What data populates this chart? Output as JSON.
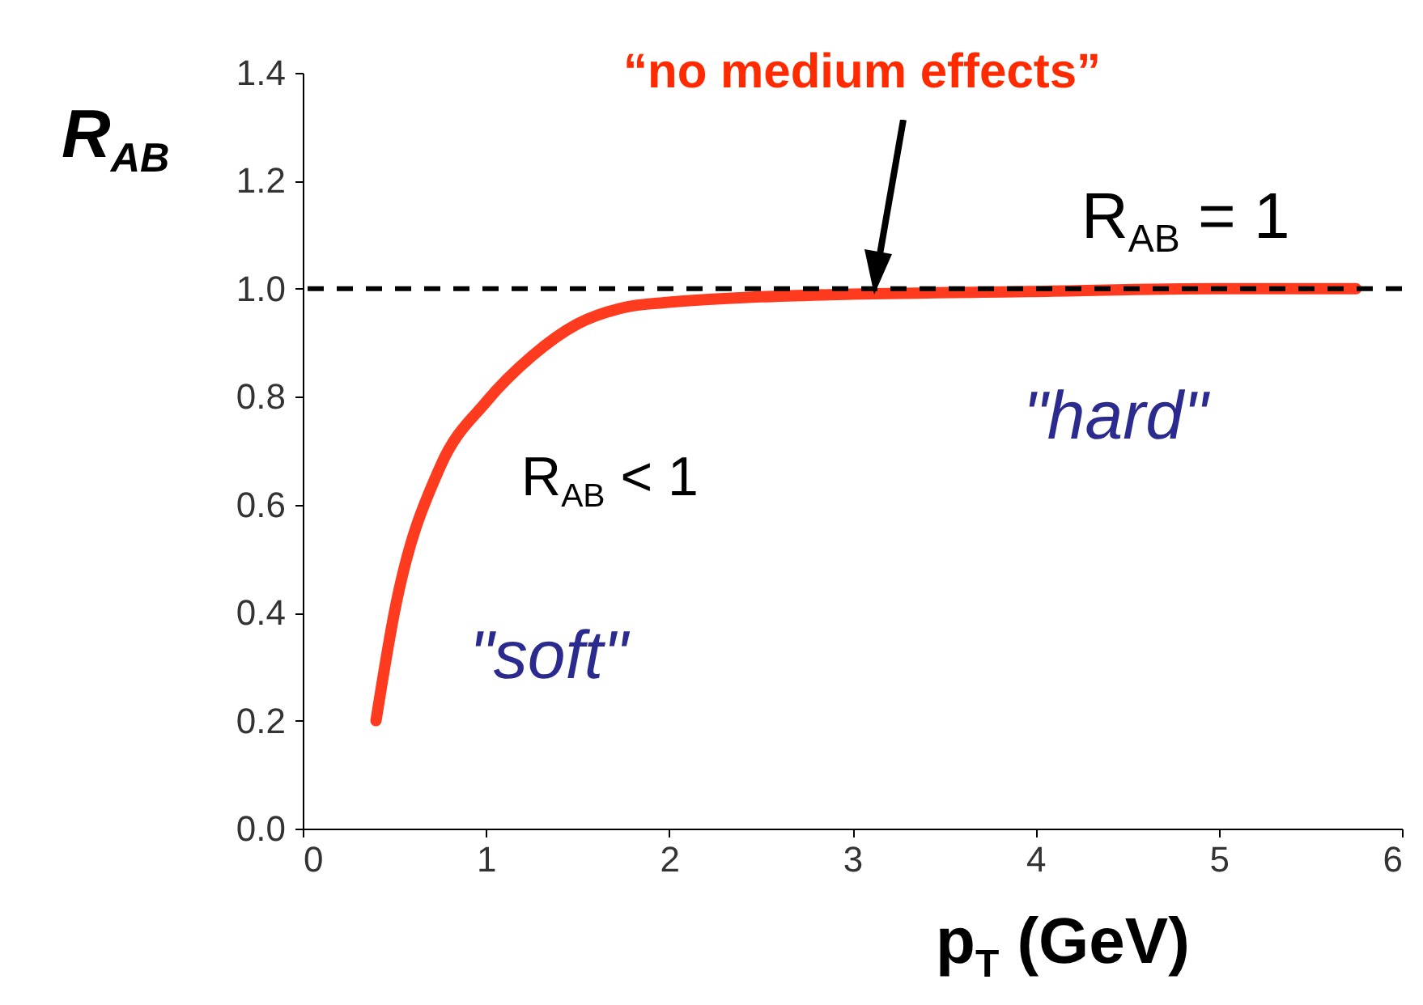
{
  "chart_data": {
    "type": "line",
    "xlabel": "p$_{T}$ (GeV)",
    "ylabel": "R$_{AB}$",
    "x": [
      0.4,
      0.5,
      0.75,
      1,
      1.25,
      1.5,
      1.75,
      2,
      2.5,
      3,
      4,
      5,
      5.75
    ],
    "series": [
      {
        "color": "#ff3b1f",
        "values": [
          0.2,
          0.4,
          0.67,
          0.79,
          0.875,
          0.935,
          0.965,
          0.975,
          0.985,
          0.99,
          0.995,
          1.0,
          1.0
        ]
      }
    ],
    "xlim": [
      0,
      6
    ],
    "xticks": [
      0,
      1,
      2,
      3,
      4,
      5,
      6
    ],
    "ylim": [
      0,
      1.4
    ],
    "yticks": [
      {
        "value": 0,
        "label": "0.0"
      },
      {
        "value": 0.2,
        "label": "0.2"
      },
      {
        "value": 0.4,
        "label": "0.4"
      },
      {
        "value": 0.6,
        "label": "0.6"
      },
      {
        "value": 0.8,
        "label": "0.8"
      },
      {
        "value": 1,
        "label": "1.0"
      },
      {
        "value": 1.2,
        "label": "1.2"
      },
      {
        "value": 1.4,
        "label": "1.4"
      }
    ],
    "ref_lines": [
      {
        "axis": "y",
        "value": 1,
        "color": "#000000",
        "line_style": "dashed"
      }
    ],
    "annotations": [
      "“no medium effects”",
      "R$_{AB}$ = 1",
      "R$_{AB}$ < 1",
      "\"soft\"",
      "\"hard\""
    ],
    "grid": false
  }
}
